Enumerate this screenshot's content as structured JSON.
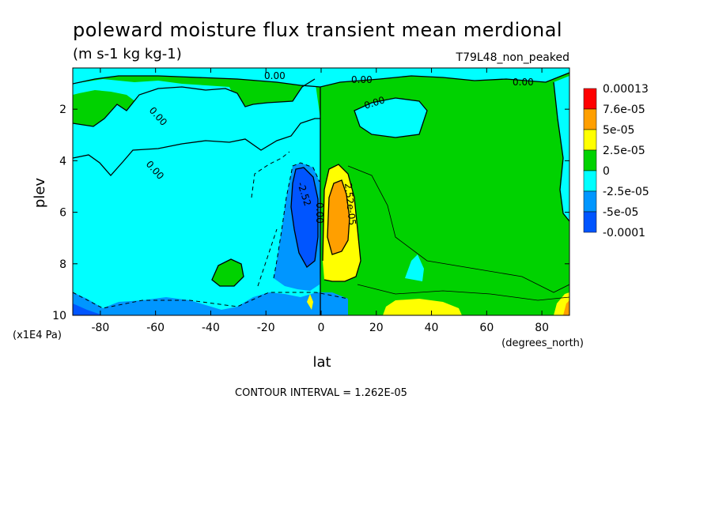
{
  "chart_data": {
    "type": "heatmap",
    "title": "poleward moisture flux transient mean merdional",
    "units": "(m s-1 kg kg-1)",
    "dataset": "T79L48_non_peaked",
    "xlabel": "lat",
    "xunits": "(degrees_north)",
    "ylabel": "plev",
    "yunits": "(x1E4 Pa)",
    "xlim": [
      -90,
      90
    ],
    "ylim": [
      10,
      0.4
    ],
    "x_ticks": [
      -80,
      -60,
      -40,
      -20,
      0,
      20,
      40,
      60,
      80
    ],
    "y_ticks": [
      2,
      4,
      6,
      8,
      10
    ],
    "contour_interval_text": "CONTOUR INTERVAL = 1.262E-05",
    "colorbar": {
      "levels": [
        "0.00013",
        "7.6e-05",
        "5e-05",
        "2.5e-05",
        "0",
        "-2.5e-05",
        "-5e-05",
        "-0.0001"
      ],
      "colors": [
        "#ff0000",
        "#ff9f00",
        "#ffff00",
        "#00d200",
        "#00ffff",
        "#0096ff",
        "#0055ff"
      ]
    },
    "contour_labels": [
      "0.00",
      "0.00",
      "0.00",
      "0.00",
      "0.00",
      "0.00",
      "-2.52",
      "2.52e-05",
      "0.00"
    ],
    "regions": [
      {
        "value_class": "0 to 2.5e-05",
        "color": "#00d200",
        "lat": [
          -90,
          90
        ],
        "plev": [
          0.4,
          10
        ]
      },
      {
        "value_class": "-2.5e-05 to 0",
        "color": "#00ffff",
        "lat": [
          -90,
          0
        ],
        "plev": [
          3,
          10
        ]
      },
      {
        "value_class": "-2.5e-05 to 0",
        "color": "#00ffff",
        "lat": [
          12,
          35
        ],
        "plev": [
          1,
          3
        ]
      },
      {
        "value_class": "-2.5e-05 to 0",
        "color": "#00ffff",
        "lat": [
          80,
          90
        ],
        "plev": [
          0.5,
          6
        ]
      },
      {
        "value_class": "-5e-05 to -2.5e-05",
        "color": "#0096ff",
        "lat": [
          -18,
          -2
        ],
        "plev": [
          4,
          9
        ]
      },
      {
        "value_class": "-0.0001 to -5e-05",
        "color": "#0055ff",
        "lat": [
          -12,
          -2
        ],
        "plev": [
          4,
          8
        ]
      },
      {
        "value_class": "2.5e-05 to 5e-05",
        "color": "#ffff00",
        "lat": [
          2,
          14
        ],
        "plev": [
          4,
          9
        ]
      },
      {
        "value_class": "5e-05 to 7.6e-05",
        "color": "#ff9f00",
        "lat": [
          3,
          10
        ],
        "plev": [
          5,
          7.7
        ]
      },
      {
        "value_class": "2.5e-05 to 5e-05",
        "color": "#ffff00",
        "lat": [
          25,
          50
        ],
        "plev": [
          9.3,
          10
        ]
      },
      {
        "value_class": "2.5e-05 to 5e-05",
        "color": "#ffff00",
        "lat": [
          84,
          90
        ],
        "plev": [
          9.1,
          10
        ]
      }
    ]
  }
}
